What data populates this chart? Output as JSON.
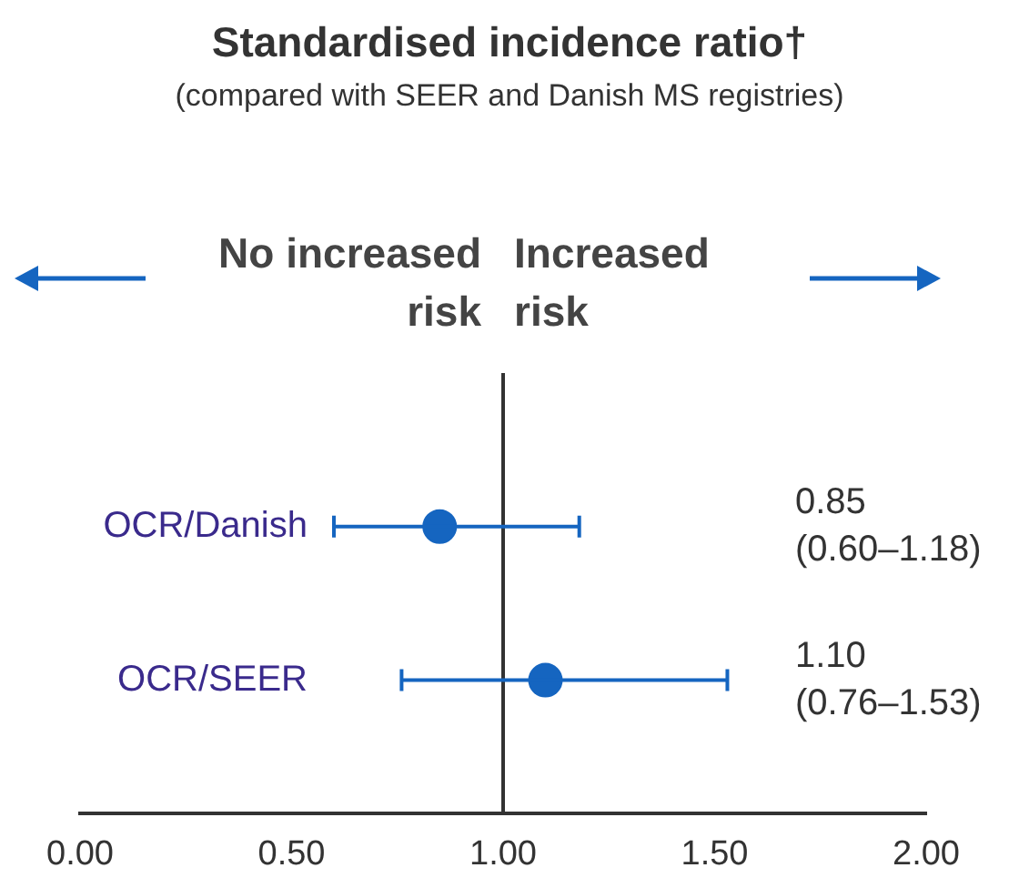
{
  "chart_data": {
    "type": "scatter",
    "orientation": "horizontal",
    "title": "Standardised incidence ratio†",
    "subtitle": "(compared with SEER and Danish MS registries)",
    "categories": [
      "OCR/Danish",
      "OCR/SEER"
    ],
    "values": [
      0.85,
      1.1
    ],
    "errors": [
      [
        0.6,
        1.18
      ],
      [
        0.76,
        1.53
      ]
    ],
    "color": "#1565c0",
    "xlim": [
      0,
      2
    ],
    "xticks": [
      {
        "value": 0,
        "label": "0.00"
      },
      {
        "value": 0.5,
        "label": "0.50"
      },
      {
        "value": 1,
        "label": "1.00"
      },
      {
        "value": 1.5,
        "label": "1.50"
      },
      {
        "value": 2,
        "label": "2.00"
      }
    ],
    "ref_lines": [
      {
        "axis": "x",
        "value": 1,
        "color": "#333333"
      }
    ],
    "annotations": [
      "No increased\nrisk",
      "Increased\nrisk",
      "0.85\n(0.60–1.18)",
      "1.10\n(0.76–1.53)"
    ],
    "grid": false,
    "legend": false,
    "marker": "circle"
  }
}
